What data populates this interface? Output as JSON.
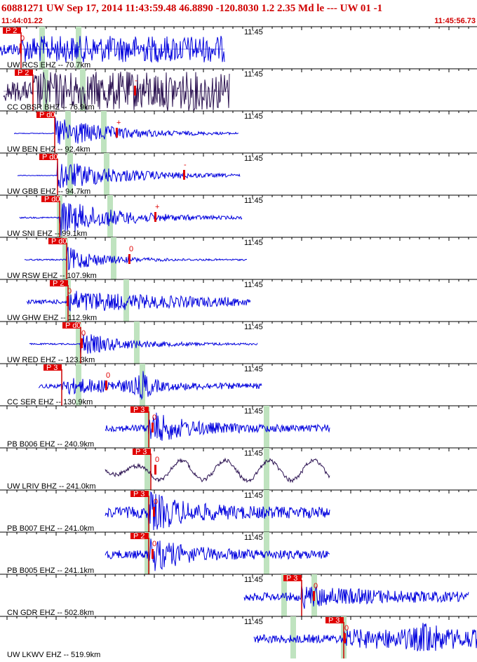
{
  "header": {
    "title": "60881271 UW Sep 17, 2014 11:43:59.48   46.8890 -120.8030  1.2 2.35 Md le --- UW 01  -1",
    "start_time": "11:44:01.22",
    "end_time": "11:45:56.73"
  },
  "traces": [
    {
      "label": "UW RCS EHZ -- 70.7km",
      "time_label": "11:45",
      "pick": "P 2",
      "marker": "0"
    },
    {
      "label": "CC OBSR BHZ -- 76.9km",
      "time_label": "11:45",
      "pick": "P 2",
      "marker": "-"
    },
    {
      "label": "UW BEN EHZ -- 92.4km",
      "time_label": "11:45",
      "pick": "P d0",
      "marker": "+"
    },
    {
      "label": "UW GBB EHZ -- 94.7km",
      "time_label": "11:45",
      "pick": "P d0",
      "marker": "-"
    },
    {
      "label": "UW SNI EHZ -- 99.1km",
      "time_label": "11:45",
      "pick": "P d0",
      "marker": "+"
    },
    {
      "label": "UW RSW EHZ -- 107.9km",
      "time_label": "11:45",
      "pick": "P d0",
      "marker": "0"
    },
    {
      "label": "UW GHW EHZ -- 112.9km",
      "time_label": "11:45",
      "pick": "P 2",
      "marker": "0"
    },
    {
      "label": "UW RED EHZ -- 123.3km",
      "time_label": "11:45",
      "pick": "P d0",
      "marker": "0"
    },
    {
      "label": "CC SER EHZ -- 130.9km",
      "time_label": "11:45",
      "pick": "P 3",
      "marker": "0"
    },
    {
      "label": "PB B006 EHZ -- 240.9km",
      "time_label": "11:45",
      "pick": "P 3",
      "marker": "0"
    },
    {
      "label": "UW LRIV BHZ -- 241.0km",
      "time_label": "11:45",
      "pick": "P 3",
      "marker": "0"
    },
    {
      "label": "PB B007 EHZ -- 241.0km",
      "time_label": "11:45",
      "pick": "P 3",
      "marker": "0"
    },
    {
      "label": "PB B005 EHZ -- 241.1km",
      "time_label": "11:45",
      "pick": "P 2",
      "marker": "0"
    },
    {
      "label": "CN GDR EHZ -- 502.8km",
      "time_label": "11:45",
      "pick": "P 3",
      "marker": "0"
    },
    {
      "label": "UW LKWV EHZ -- 519.9km",
      "time_label": "11:45",
      "pick": "P 3",
      "marker": "0"
    }
  ]
}
